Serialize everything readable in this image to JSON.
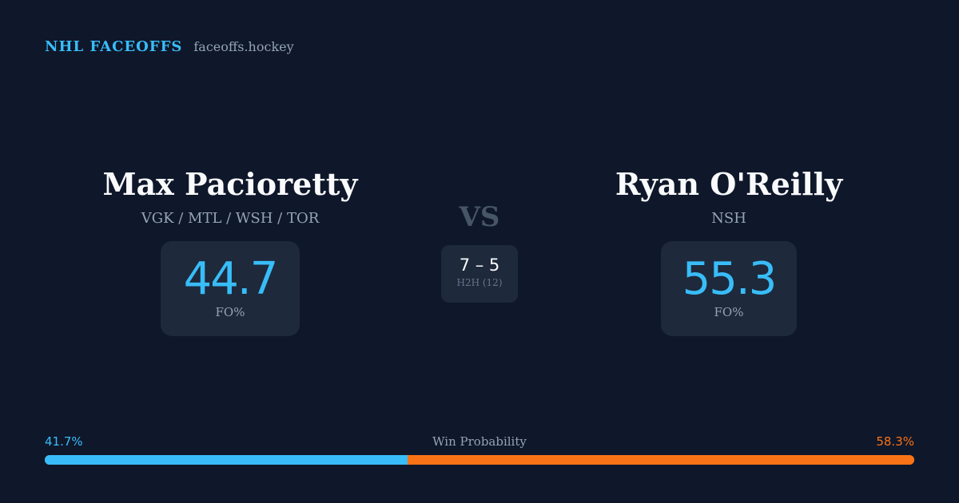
{
  "brand": {
    "name": "NHL FACEOFFS",
    "domain": "faceoffs.hockey"
  },
  "colors": {
    "background": "#0f172a",
    "card": "#1e293b",
    "accent_left": "#38bdf8",
    "accent_right": "#f97316",
    "muted": "#94a3b8"
  },
  "player_left": {
    "name": "Max Pacioretty",
    "teams": "VGK / MTL / WSH / TOR",
    "fo_value": "44.7",
    "fo_label": "FO%"
  },
  "vs_label": "VS",
  "head_to_head": {
    "score": "7 – 5",
    "label": "H2H (12)"
  },
  "player_right": {
    "name": "Ryan O'Reilly",
    "teams": "NSH",
    "fo_value": "55.3",
    "fo_label": "FO%"
  },
  "win_probability": {
    "title": "Win Probability",
    "left_label": "41.7%",
    "right_label": "58.3%",
    "left_percent": 41.7,
    "right_percent": 58.3
  }
}
